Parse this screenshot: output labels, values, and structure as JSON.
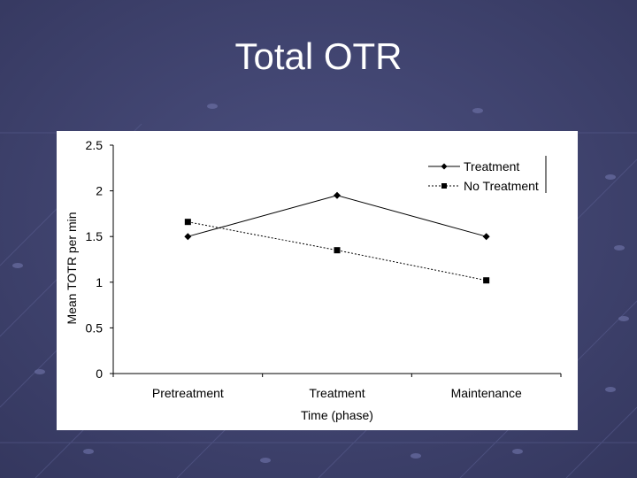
{
  "slide": {
    "title": "Total OTR",
    "background_color": "#3e4170",
    "title_color": "#ffffff"
  },
  "chart_data": {
    "type": "line",
    "categories": [
      "Pretreatment",
      "Treatment",
      "Maintenance"
    ],
    "series": [
      {
        "name": "Treatment",
        "values": [
          1.5,
          1.95,
          1.5
        ],
        "marker": "diamond",
        "line_style": "solid"
      },
      {
        "name": "No Treatment",
        "values": [
          1.66,
          1.35,
          1.02
        ],
        "marker": "square",
        "line_style": "dotted"
      }
    ],
    "xlabel": "Time (phase)",
    "ylabel": "Mean TOTR per min",
    "ylim": [
      0,
      2.5
    ],
    "yticks": [
      0,
      0.5,
      1,
      1.5,
      2,
      2.5
    ],
    "ytick_labels": [
      "0",
      "0.5",
      "1",
      "1.5",
      "2",
      "2.5"
    ],
    "grid": false,
    "legend_position": "top-right"
  }
}
